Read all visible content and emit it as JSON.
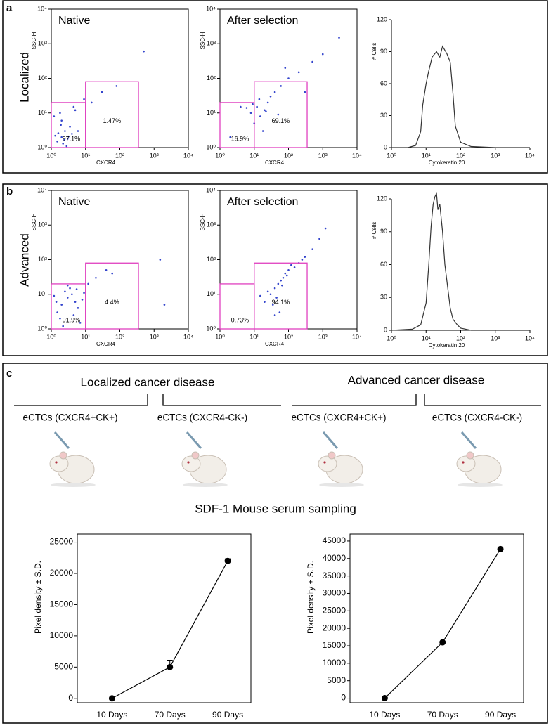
{
  "panels": {
    "a": "a",
    "b": "b",
    "c": "c",
    "row_a": "Localized",
    "row_b": "Advanced"
  },
  "mice": {
    "group_left": "Localized cancer disease",
    "group_right": "Advanced cancer disease",
    "labels": [
      "eCTCs (CXCR4+CK+)",
      "eCTCs (CXCR4-CK-)",
      "eCTCs (CXCR4+CK+)",
      "eCTCs (CXCR4-CK-)"
    ],
    "sampling": "SDF-1 Mouse serum sampling"
  },
  "chart_data": [
    {
      "type": "scatter",
      "title": "Native",
      "x_label": "CXCR4",
      "y_label": "SSC-H",
      "log": true,
      "color": "#3344cc",
      "xlim": [
        1,
        10000
      ],
      "ylim": [
        1,
        10000
      ],
      "xticks": [
        {
          "value": 1,
          "label": "10⁰"
        },
        {
          "value": 10,
          "label": "10¹"
        },
        {
          "value": 100,
          "label": "10²"
        },
        {
          "value": 1000,
          "label": "10³"
        },
        {
          "value": 10000,
          "label": "10⁴"
        }
      ],
      "yticks": [
        {
          "value": 1,
          "label": "10⁰"
        },
        {
          "value": 10,
          "label": "10¹"
        },
        {
          "value": 100,
          "label": "10²"
        },
        {
          "value": 1000,
          "label": "10³"
        },
        {
          "value": 10000,
          "label": "10⁴"
        }
      ],
      "x": [
        1.5,
        2,
        2.5,
        3,
        4,
        2,
        1.8,
        3.5,
        6,
        1.3,
        2.2,
        15,
        30,
        80,
        5,
        1.2,
        2.8,
        4.5,
        9,
        500,
        1.6,
        2.4,
        3.2,
        1.9
      ],
      "y": [
        1.5,
        2,
        3,
        1.8,
        2.5,
        6,
        10,
        4,
        3,
        2.2,
        1.3,
        20,
        40,
        60,
        12,
        8,
        1.1,
        15,
        25,
        600,
        2.6,
        1.7,
        2.1,
        4.5
      ],
      "gates": [
        {
          "x": [
            1,
            10
          ],
          "y": [
            1,
            20
          ],
          "label": "97.1%"
        },
        {
          "x": [
            10,
            350
          ],
          "y": [
            1,
            80
          ],
          "label": "1.47%"
        }
      ]
    },
    {
      "type": "scatter",
      "title": "After selection",
      "x_label": "CXCR4",
      "y_label": "SSC-H",
      "log": true,
      "color": "#3344cc",
      "xlim": [
        1,
        10000
      ],
      "ylim": [
        1,
        10000
      ],
      "xticks": [
        {
          "value": 1,
          "label": "10⁰"
        },
        {
          "value": 10,
          "label": "10¹"
        },
        {
          "value": 100,
          "label": "10²"
        },
        {
          "value": 1000,
          "label": "10³"
        },
        {
          "value": 10000,
          "label": "10⁴"
        }
      ],
      "yticks": [
        {
          "value": 1,
          "label": "10⁰"
        },
        {
          "value": 10,
          "label": "10¹"
        },
        {
          "value": 100,
          "label": "10²"
        },
        {
          "value": 1000,
          "label": "10³"
        },
        {
          "value": 10000,
          "label": "10⁴"
        }
      ],
      "x": [
        8,
        12,
        15,
        20,
        25,
        30,
        10,
        6,
        40,
        60,
        100,
        200,
        500,
        1000,
        3000,
        18,
        22,
        14,
        9,
        50,
        300,
        2,
        4,
        80
      ],
      "y": [
        10,
        15,
        8,
        12,
        20,
        30,
        5,
        14,
        40,
        60,
        100,
        150,
        300,
        500,
        1500,
        3,
        11,
        25,
        18,
        9,
        40,
        2,
        15,
        200
      ],
      "gates": [
        {
          "x": [
            1,
            10
          ],
          "y": [
            1,
            20
          ],
          "label": "16.9%"
        },
        {
          "x": [
            10,
            350
          ],
          "y": [
            1,
            80
          ],
          "label": "69.1%"
        }
      ]
    },
    {
      "type": "line",
      "x_label": "Cytokeratin 20",
      "y_label": "# Cells",
      "log": true,
      "color": "#333333",
      "xlim": [
        1,
        10000
      ],
      "ylim": [
        0,
        120
      ],
      "xticks": [
        {
          "value": 1,
          "label": "10⁰"
        },
        {
          "value": 10,
          "label": "10¹"
        },
        {
          "value": 100,
          "label": "10²"
        },
        {
          "value": 1000,
          "label": "10³"
        },
        {
          "value": 10000,
          "label": "10⁴"
        }
      ],
      "yticks": [
        0,
        30,
        60,
        90,
        120
      ],
      "x": [
        1,
        3,
        5,
        7,
        8,
        10,
        12,
        15,
        20,
        25,
        30,
        40,
        50,
        60,
        70,
        100,
        200,
        1000,
        10000
      ],
      "values": [
        0,
        0,
        2,
        15,
        40,
        60,
        72,
        85,
        90,
        85,
        95,
        88,
        80,
        50,
        20,
        5,
        1,
        0,
        0
      ]
    },
    {
      "type": "scatter",
      "title": "Native",
      "x_label": "CXCR4",
      "y_label": "SSC-H",
      "log": true,
      "color": "#3344cc",
      "xlim": [
        1,
        10000
      ],
      "ylim": [
        1,
        10000
      ],
      "xticks": [
        {
          "value": 1,
          "label": "10⁰"
        },
        {
          "value": 10,
          "label": "10¹"
        },
        {
          "value": 100,
          "label": "10²"
        },
        {
          "value": 1000,
          "label": "10³"
        },
        {
          "value": 10000,
          "label": "10⁴"
        }
      ],
      "yticks": [
        {
          "value": 1,
          "label": "10⁰"
        },
        {
          "value": 10,
          "label": "10¹"
        },
        {
          "value": 100,
          "label": "10²"
        },
        {
          "value": 1000,
          "label": "10³"
        },
        {
          "value": 10000,
          "label": "10⁴"
        }
      ],
      "x": [
        1.5,
        2,
        3,
        4,
        5,
        6,
        2.5,
        1.8,
        8,
        1.2,
        3.5,
        12,
        20,
        40,
        60,
        1500,
        2000,
        7,
        2.2,
        4.5,
        9,
        1.4,
        3,
        5.5
      ],
      "y": [
        3,
        5,
        8,
        10,
        6,
        4,
        12,
        2,
        7,
        9,
        15,
        20,
        30,
        50,
        40,
        100,
        5,
        1.5,
        1.2,
        2.5,
        11,
        6,
        18,
        14
      ],
      "gates": [
        {
          "x": [
            1,
            10
          ],
          "y": [
            1,
            20
          ],
          "label": "91.9%"
        },
        {
          "x": [
            10,
            350
          ],
          "y": [
            1,
            80
          ],
          "label": "4.4%"
        }
      ]
    },
    {
      "type": "scatter",
      "title": "After selection",
      "x_label": "CXCR4",
      "y_label": "SSC-H",
      "log": true,
      "color": "#3344cc",
      "xlim": [
        1,
        10000
      ],
      "ylim": [
        1,
        10000
      ],
      "xticks": [
        {
          "value": 1,
          "label": "10⁰"
        },
        {
          "value": 10,
          "label": "10¹"
        },
        {
          "value": 100,
          "label": "10²"
        },
        {
          "value": 1000,
          "label": "10³"
        },
        {
          "value": 10000,
          "label": "10⁴"
        }
      ],
      "yticks": [
        {
          "value": 1,
          "label": "10⁰"
        },
        {
          "value": 10,
          "label": "10¹"
        },
        {
          "value": 100,
          "label": "10²"
        },
        {
          "value": 1000,
          "label": "10³"
        },
        {
          "value": 10000,
          "label": "10⁴"
        }
      ],
      "x": [
        30,
        40,
        50,
        60,
        45,
        35,
        70,
        25,
        55,
        80,
        100,
        150,
        200,
        300,
        500,
        800,
        20,
        65,
        40,
        90,
        120,
        15,
        250,
        1200
      ],
      "y": [
        10,
        15,
        20,
        25,
        8,
        5,
        30,
        12,
        3,
        40,
        50,
        60,
        80,
        120,
        200,
        400,
        6,
        18,
        2.5,
        35,
        70,
        9,
        100,
        800
      ],
      "gates": [
        {
          "x": [
            1,
            10
          ],
          "y": [
            1,
            20
          ],
          "label": "0.73%"
        },
        {
          "x": [
            10,
            350
          ],
          "y": [
            1,
            80
          ],
          "label": "94.1%"
        }
      ]
    },
    {
      "type": "line",
      "x_label": "Cytokeratin 20",
      "y_label": "# Cells",
      "log": true,
      "color": "#333333",
      "xlim": [
        1,
        10000
      ],
      "ylim": [
        0,
        120
      ],
      "xticks": [
        {
          "value": 1,
          "label": "10⁰"
        },
        {
          "value": 10,
          "label": "10¹"
        },
        {
          "value": 100,
          "label": "10²"
        },
        {
          "value": 1000,
          "label": "10³"
        },
        {
          "value": 10000,
          "label": "10⁴"
        }
      ],
      "yticks": [
        0,
        30,
        60,
        90,
        120
      ],
      "x": [
        1,
        4,
        7,
        10,
        12,
        14,
        16,
        18,
        20,
        22,
        25,
        30,
        35,
        40,
        50,
        60,
        80,
        100,
        200,
        10000
      ],
      "values": [
        0,
        1,
        5,
        25,
        60,
        95,
        115,
        122,
        125,
        110,
        115,
        90,
        60,
        45,
        20,
        10,
        5,
        2,
        0,
        0
      ]
    },
    {
      "type": "errorline",
      "y_label": "Pixel density ± S.D.",
      "color": "#000000",
      "categories": [
        "10 Days",
        "70 Days",
        "90 Days"
      ],
      "values": [
        0,
        5000,
        22000
      ],
      "errors": [
        null,
        1100,
        350
      ],
      "ylim": [
        -700,
        26300
      ],
      "yticks": [
        0,
        5000,
        10000,
        15000,
        20000,
        25000
      ]
    },
    {
      "type": "errorline",
      "y_label": "Pixel density ± S.D.",
      "color": "#000000",
      "categories": [
        "10 Days",
        "70 Days",
        "90 Days"
      ],
      "values": [
        0,
        16000,
        42700
      ],
      "errors": [
        null,
        null,
        null
      ],
      "ylim": [
        -1300,
        47000
      ],
      "yticks": [
        0,
        5000,
        10000,
        15000,
        20000,
        25000,
        30000,
        35000,
        40000,
        45000
      ]
    }
  ]
}
